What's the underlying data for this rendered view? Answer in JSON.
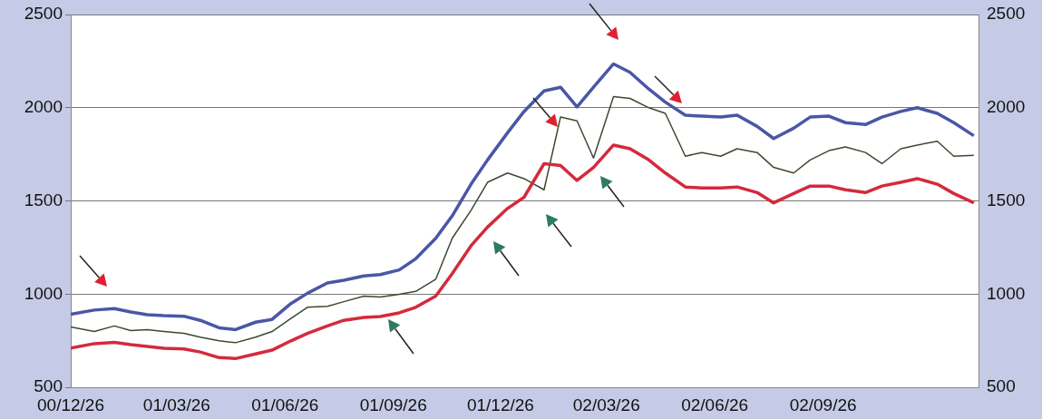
{
  "chart_data": {
    "type": "line",
    "x": [
      "2000-12-26",
      "2001-01-15",
      "2001-02-01",
      "2001-02-15",
      "2001-03-01",
      "2001-03-15",
      "2001-04-01",
      "2001-04-15",
      "2001-05-01",
      "2001-05-15",
      "2001-06-01",
      "2001-06-15",
      "2001-07-01",
      "2001-07-15",
      "2001-08-01",
      "2001-08-15",
      "2001-09-01",
      "2001-09-15",
      "2001-10-01",
      "2001-10-15",
      "2001-11-01",
      "2001-11-15",
      "2001-12-01",
      "2001-12-15",
      "2002-01-01",
      "2002-01-15",
      "2002-02-01",
      "2002-02-15",
      "2002-03-01",
      "2002-03-15",
      "2002-04-01",
      "2002-04-15",
      "2002-05-01",
      "2002-05-15",
      "2002-06-01",
      "2002-06-15",
      "2002-07-01",
      "2002-07-15",
      "2002-08-01",
      "2002-08-15",
      "2002-09-01",
      "2002-09-15",
      "2002-10-01",
      "2002-10-15",
      "2002-11-01",
      "2002-11-15",
      "2002-12-01",
      "2002-12-15",
      "2003-01-01",
      "2003-01-15",
      "2003-02-01"
    ],
    "series": [
      {
        "color": "#4a56a6",
        "values": [
          892,
          915,
          923,
          905,
          890,
          885,
          882,
          860,
          820,
          810,
          850,
          865,
          950,
          1005,
          1060,
          1075,
          1098,
          1105,
          1130,
          1190,
          1300,
          1420,
          1590,
          1720,
          1866,
          1980,
          2090,
          2110,
          2005,
          2110,
          2235,
          2190,
          2100,
          2030,
          1960,
          1955,
          1950,
          1960,
          1900,
          1835,
          1890,
          1950,
          1955,
          1920,
          1910,
          1950,
          1980,
          2000,
          1970,
          1920,
          1850
        ]
      },
      {
        "color": "#d42a3c",
        "values": [
          711,
          735,
          742,
          730,
          720,
          710,
          706,
          690,
          660,
          655,
          680,
          700,
          750,
          790,
          830,
          860,
          875,
          880,
          900,
          930,
          990,
          1110,
          1260,
          1360,
          1460,
          1520,
          1700,
          1690,
          1610,
          1680,
          1800,
          1780,
          1720,
          1650,
          1575,
          1570,
          1570,
          1575,
          1545,
          1490,
          1540,
          1580,
          1580,
          1560,
          1545,
          1580,
          1600,
          1620,
          1590,
          1540,
          1490
        ]
      },
      {
        "color": "#3a4a30",
        "values": [
          825,
          800,
          830,
          805,
          810,
          800,
          790,
          770,
          750,
          740,
          770,
          800,
          870,
          930,
          935,
          960,
          990,
          985,
          1000,
          1015,
          1080,
          1300,
          1450,
          1600,
          1650,
          1620,
          1560,
          1950,
          1930,
          1730,
          2060,
          2050,
          2000,
          1970,
          1740,
          1760,
          1740,
          1780,
          1760,
          1680,
          1650,
          1720,
          1770,
          1790,
          1760,
          1700,
          1780,
          1800,
          1820,
          1740,
          1745
        ]
      }
    ],
    "xlim": [
      "2000-12-26",
      "2003-02-05"
    ],
    "xticks": [
      {
        "value": "2000-12-26",
        "label": "00/12/26"
      },
      {
        "value": "2001-03-26",
        "label": "01/03/26"
      },
      {
        "value": "2001-06-26",
        "label": "01/06/26"
      },
      {
        "value": "2001-09-26",
        "label": "01/09/26"
      },
      {
        "value": "2001-12-26",
        "label": "01/12/26"
      },
      {
        "value": "2002-03-26",
        "label": "02/03/26"
      },
      {
        "value": "2002-06-26",
        "label": "02/06/26"
      },
      {
        "value": "2002-09-26",
        "label": "02/09/26"
      }
    ],
    "ylim": [
      500,
      2500
    ],
    "yticks": [
      500,
      1000,
      1500,
      2000,
      2500
    ],
    "y2lim": [
      500,
      2500
    ],
    "y2ticks": [
      500,
      1000,
      1500,
      2000,
      2500
    ],
    "grid": "y",
    "legend": false,
    "marker": "none",
    "line_style": "solid"
  }
}
